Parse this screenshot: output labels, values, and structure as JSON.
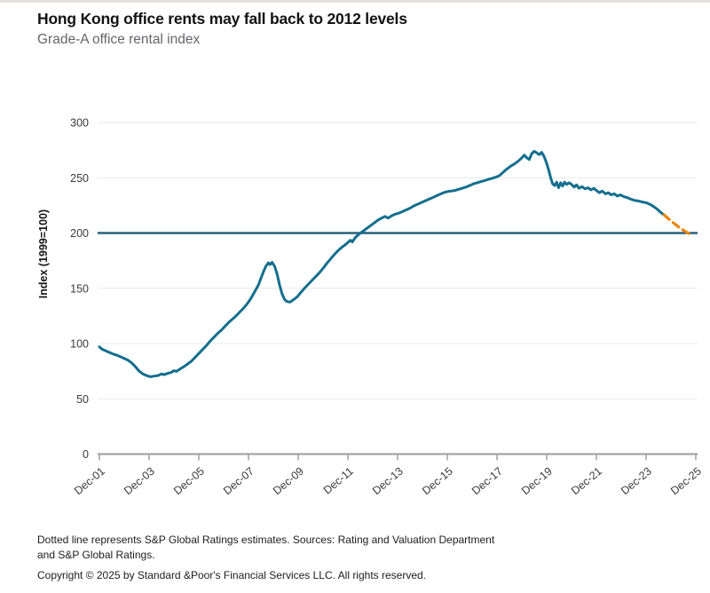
{
  "page": {
    "title": "Hong Kong office rents may fall back to 2012 levels",
    "subtitle": "Grade-A office rental index",
    "footnote_line1": "Dotted line represents S&P Global Ratings estimates. Sources: Rating and Valuation Department",
    "footnote_line2": "and S&P Global Ratings.",
    "copyright": "Copyright © 2025 by Standard &Poor's Financial Services LLC. All rights reserved."
  },
  "colors": {
    "series_actual": "#146e8e",
    "series_forecast": "#e8860d",
    "reference_line": "#27607f",
    "gridline": "#e9e9e9",
    "axis_line": "#9b9b9b",
    "tick_text": "#3a3a3a",
    "axis_title_text": "#161616"
  },
  "chart_data": {
    "type": "line",
    "title": "Hong Kong office rents may fall back to 2012 levels",
    "subtitle": "Grade-A office rental index",
    "xlabel": "",
    "ylabel": "Index (1999=100)",
    "ylim": [
      0,
      300
    ],
    "y_ticks": [
      0,
      50,
      100,
      150,
      200,
      250,
      300
    ],
    "x_tick_labels": [
      "Dec-01",
      "Dec-03",
      "Dec-05",
      "Dec-07",
      "Dec-09",
      "Dec-11",
      "Dec-13",
      "Dec-15",
      "Dec-17",
      "Dec-19",
      "Dec-21",
      "Dec-23",
      "Dec-25"
    ],
    "x_unit": "years since Dec-2001, 2-year ticks",
    "grid": "horizontal only",
    "legend_position": "none",
    "reference_line_y": 200,
    "series": [
      {
        "name": "Grade-A office rental index (actual)",
        "line_style": "solid",
        "color": "#146e8e",
        "points": [
          [
            0,
            97
          ],
          [
            0.1,
            95
          ],
          [
            0.25,
            93.5
          ],
          [
            0.4,
            92
          ],
          [
            0.55,
            90.5
          ],
          [
            0.7,
            89.5
          ],
          [
            0.85,
            88
          ],
          [
            1.0,
            86.5
          ],
          [
            1.15,
            85
          ],
          [
            1.3,
            82.5
          ],
          [
            1.45,
            79
          ],
          [
            1.6,
            75
          ],
          [
            1.75,
            72.5
          ],
          [
            1.9,
            71
          ],
          [
            2.05,
            70
          ],
          [
            2.2,
            70.5
          ],
          [
            2.35,
            71
          ],
          [
            2.5,
            72.5
          ],
          [
            2.6,
            71.8
          ],
          [
            2.75,
            73
          ],
          [
            2.9,
            74
          ],
          [
            3.0,
            75.5
          ],
          [
            3.1,
            74.8
          ],
          [
            3.25,
            77
          ],
          [
            3.4,
            79
          ],
          [
            3.55,
            81.5
          ],
          [
            3.7,
            84
          ],
          [
            3.85,
            87.5
          ],
          [
            4.0,
            91
          ],
          [
            4.15,
            94.5
          ],
          [
            4.3,
            98
          ],
          [
            4.45,
            102
          ],
          [
            4.6,
            105.5
          ],
          [
            4.75,
            109
          ],
          [
            4.9,
            112
          ],
          [
            5.05,
            115.5
          ],
          [
            5.2,
            119
          ],
          [
            5.35,
            122
          ],
          [
            5.5,
            125
          ],
          [
            5.65,
            128.5
          ],
          [
            5.8,
            132
          ],
          [
            5.95,
            136
          ],
          [
            6.1,
            141
          ],
          [
            6.25,
            147
          ],
          [
            6.4,
            153
          ],
          [
            6.5,
            159
          ],
          [
            6.6,
            165
          ],
          [
            6.7,
            170
          ],
          [
            6.8,
            173
          ],
          [
            6.87,
            171.5
          ],
          [
            6.95,
            173.5
          ],
          [
            7.05,
            170
          ],
          [
            7.15,
            163
          ],
          [
            7.25,
            153
          ],
          [
            7.35,
            145
          ],
          [
            7.45,
            140
          ],
          [
            7.55,
            138
          ],
          [
            7.67,
            137.5
          ],
          [
            7.8,
            139.5
          ],
          [
            7.95,
            142
          ],
          [
            8.1,
            146
          ],
          [
            8.25,
            150
          ],
          [
            8.4,
            153.5
          ],
          [
            8.55,
            157
          ],
          [
            8.7,
            160.5
          ],
          [
            8.85,
            164
          ],
          [
            9.0,
            168
          ],
          [
            9.15,
            172.5
          ],
          [
            9.3,
            176.5
          ],
          [
            9.45,
            180.5
          ],
          [
            9.6,
            184
          ],
          [
            9.75,
            187
          ],
          [
            9.9,
            189.5
          ],
          [
            10.0,
            191.5
          ],
          [
            10.1,
            193.5
          ],
          [
            10.18,
            192
          ],
          [
            10.3,
            196
          ],
          [
            10.45,
            199
          ],
          [
            10.6,
            201.5
          ],
          [
            10.75,
            204
          ],
          [
            10.9,
            206.5
          ],
          [
            11.05,
            209
          ],
          [
            11.2,
            211.5
          ],
          [
            11.35,
            213.5
          ],
          [
            11.5,
            215
          ],
          [
            11.62,
            213.5
          ],
          [
            11.75,
            215.5
          ],
          [
            11.9,
            217
          ],
          [
            12.05,
            218
          ],
          [
            12.2,
            219.5
          ],
          [
            12.35,
            221
          ],
          [
            12.5,
            222.5
          ],
          [
            12.65,
            224.5
          ],
          [
            12.8,
            226
          ],
          [
            12.95,
            227.5
          ],
          [
            13.1,
            229
          ],
          [
            13.25,
            230.5
          ],
          [
            13.4,
            232
          ],
          [
            13.55,
            233.5
          ],
          [
            13.7,
            235
          ],
          [
            13.85,
            236.5
          ],
          [
            14.0,
            237.5
          ],
          [
            14.15,
            238
          ],
          [
            14.3,
            238.5
          ],
          [
            14.45,
            239.5
          ],
          [
            14.6,
            240.5
          ],
          [
            14.75,
            241.5
          ],
          [
            14.9,
            243
          ],
          [
            15.05,
            244.5
          ],
          [
            15.2,
            245.5
          ],
          [
            15.35,
            246.5
          ],
          [
            15.5,
            247.5
          ],
          [
            15.65,
            248.5
          ],
          [
            15.8,
            249.5
          ],
          [
            15.95,
            250.5
          ],
          [
            16.1,
            252
          ],
          [
            16.25,
            255
          ],
          [
            16.4,
            258
          ],
          [
            16.55,
            260.5
          ],
          [
            16.7,
            262.5
          ],
          [
            16.85,
            265
          ],
          [
            17.0,
            268
          ],
          [
            17.1,
            270.5
          ],
          [
            17.2,
            268
          ],
          [
            17.3,
            266.5
          ],
          [
            17.4,
            272
          ],
          [
            17.5,
            274
          ],
          [
            17.6,
            272.5
          ],
          [
            17.7,
            271
          ],
          [
            17.8,
            273
          ],
          [
            17.9,
            269
          ],
          [
            18.0,
            263
          ],
          [
            18.08,
            257
          ],
          [
            18.16,
            250
          ],
          [
            18.24,
            244.5
          ],
          [
            18.32,
            243
          ],
          [
            18.4,
            246
          ],
          [
            18.48,
            241
          ],
          [
            18.56,
            245.5
          ],
          [
            18.64,
            242.5
          ],
          [
            18.72,
            246
          ],
          [
            18.8,
            244
          ],
          [
            18.9,
            245.5
          ],
          [
            19.0,
            244
          ],
          [
            19.1,
            241.5
          ],
          [
            19.2,
            243.5
          ],
          [
            19.3,
            240.5
          ],
          [
            19.42,
            242
          ],
          [
            19.54,
            240
          ],
          [
            19.66,
            241
          ],
          [
            19.78,
            239
          ],
          [
            19.9,
            240.5
          ],
          [
            20.0,
            238.5
          ],
          [
            20.12,
            236.5
          ],
          [
            20.24,
            238
          ],
          [
            20.36,
            235.5
          ],
          [
            20.48,
            236.5
          ],
          [
            20.6,
            234.5
          ],
          [
            20.72,
            235.5
          ],
          [
            20.84,
            233.5
          ],
          [
            20.96,
            234.5
          ],
          [
            21.1,
            233
          ],
          [
            21.25,
            232
          ],
          [
            21.4,
            230.5
          ],
          [
            21.55,
            229.5
          ],
          [
            21.7,
            229
          ],
          [
            21.85,
            228
          ],
          [
            22.0,
            227.5
          ],
          [
            22.15,
            226
          ],
          [
            22.3,
            224
          ],
          [
            22.45,
            221.5
          ],
          [
            22.55,
            219.5
          ],
          [
            22.65,
            217.5
          ],
          [
            22.72,
            216.5
          ]
        ]
      },
      {
        "name": "S&P Global Ratings estimates (dotted)",
        "line_style": "dashed",
        "color": "#e8860d",
        "points": [
          [
            22.72,
            216.5
          ],
          [
            23.0,
            211
          ],
          [
            23.25,
            206.5
          ],
          [
            23.5,
            202.5
          ],
          [
            23.72,
            199.5
          ]
        ]
      }
    ]
  }
}
